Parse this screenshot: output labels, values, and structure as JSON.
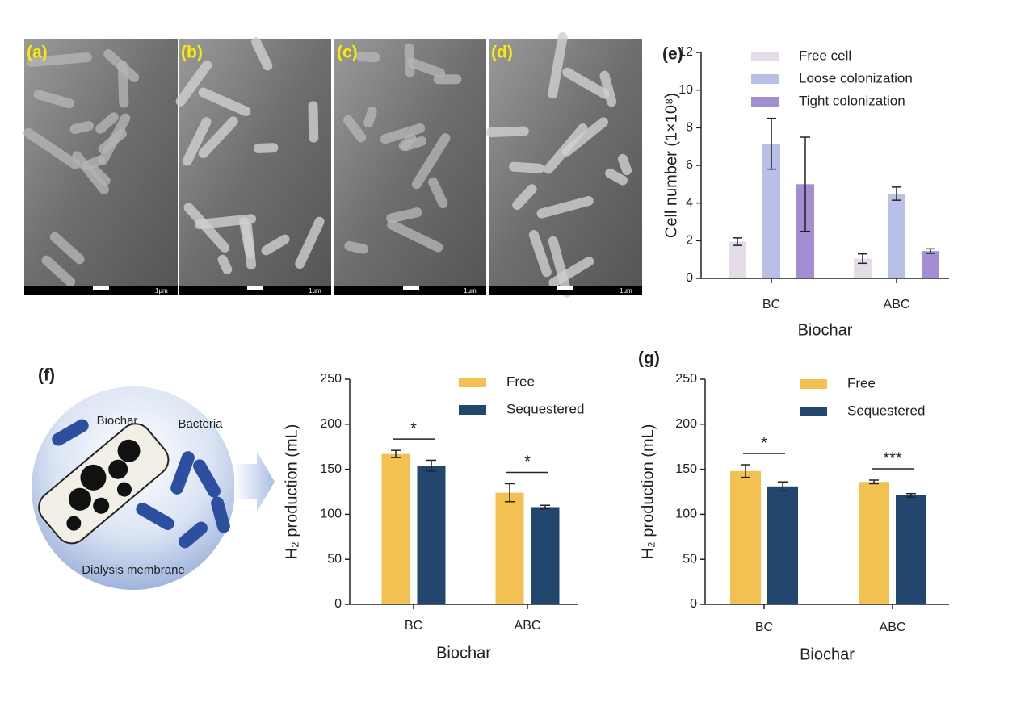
{
  "images": [
    {
      "label": "(a)",
      "scale": "1μm"
    },
    {
      "label": "(b)",
      "scale": "1μm"
    },
    {
      "label": "(c)",
      "scale": "1μm"
    },
    {
      "label": "(d)",
      "scale": "1μm"
    }
  ],
  "diagram": {
    "label": "(f)",
    "biochar": "Biochar",
    "bacteria": "Bacteria",
    "membrane": "Dialysis membrane"
  },
  "chart_data": [
    {
      "type": "bar",
      "label": "(e)",
      "ylabel": "Cell number (1×10⁸)",
      "xlabel": "Biochar",
      "categories": [
        "BC",
        "ABC"
      ],
      "series": [
        {
          "name": "Free cell",
          "color": "#e4dde8",
          "values": [
            1.95,
            1.05
          ],
          "errors": [
            0.2,
            0.25
          ]
        },
        {
          "name": "Loose colonization",
          "color": "#b8c0e8",
          "values": [
            7.15,
            4.5
          ],
          "errors": [
            1.35,
            0.35
          ]
        },
        {
          "name": "Tight colonization",
          "color": "#a38ed2",
          "values": [
            5.0,
            1.45
          ],
          "errors": [
            2.5,
            0.12
          ]
        }
      ],
      "ylim": [
        0,
        12
      ],
      "yticks": [
        0,
        2,
        4,
        6,
        8,
        10,
        12
      ]
    },
    {
      "type": "bar",
      "ylabel": "H₂ production (mL)",
      "xlabel": "Biochar",
      "categories": [
        "BC",
        "ABC"
      ],
      "series": [
        {
          "name": "Free",
          "color": "#f3c152",
          "values": [
            167,
            124
          ],
          "errors": [
            4,
            10
          ]
        },
        {
          "name": "Sequestered",
          "color": "#22466e",
          "values": [
            154,
            108
          ],
          "errors": [
            6,
            2
          ]
        }
      ],
      "significance": [
        "*",
        "*"
      ],
      "ylim": [
        0,
        250
      ],
      "yticks": [
        0,
        50,
        100,
        150,
        200,
        250
      ]
    },
    {
      "type": "bar",
      "label": "(g)",
      "ylabel": "H₂ production (mL)",
      "xlabel": "Biochar",
      "categories": [
        "BC",
        "ABC"
      ],
      "series": [
        {
          "name": "Free",
          "color": "#f3c152",
          "values": [
            148,
            136
          ],
          "errors": [
            7,
            2
          ]
        },
        {
          "name": "Sequestered",
          "color": "#22466e",
          "values": [
            131,
            121
          ],
          "errors": [
            5,
            2
          ]
        }
      ],
      "significance": [
        "*",
        "***"
      ],
      "ylim": [
        0,
        250
      ],
      "yticks": [
        0,
        50,
        100,
        150,
        200,
        250
      ]
    }
  ]
}
